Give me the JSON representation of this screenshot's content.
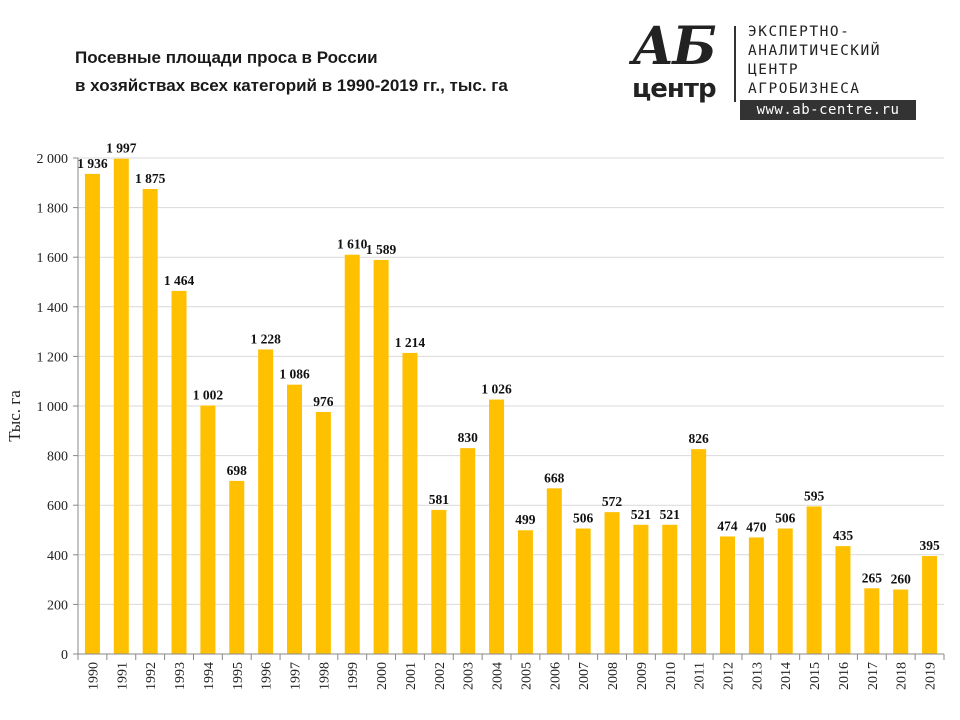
{
  "title": {
    "line1": "Посевные площади проса в России",
    "line2": "в хозяйствах всех категорий в 1990-2019 гг., тыс. га"
  },
  "logo": {
    "mark_top": "АБ",
    "mark_bottom": "центр",
    "line1": "ЭКСПЕРТНО-",
    "line2": "АНАЛИТИЧЕСКИЙ",
    "line3": "ЦЕНТР",
    "line4": "АГРОБИЗНЕСА",
    "url": "www.ab-centre.ru"
  },
  "chart_data": {
    "type": "bar",
    "title": "Посевные площади проса в России в хозяйствах всех категорий в 1990-2019 гг., тыс. га",
    "xlabel": "",
    "ylabel": "Тыс. га",
    "ylim": [
      0,
      2000
    ],
    "yticks": [
      0,
      200,
      400,
      600,
      800,
      1000,
      1200,
      1400,
      1600,
      1800,
      2000
    ],
    "ytick_labels": [
      "0",
      "200",
      "400",
      "600",
      "800",
      "1 000",
      "1 200",
      "1 400",
      "1 600",
      "1 800",
      "2 000"
    ],
    "grid": true,
    "bar_color": "#FFC000",
    "categories": [
      "1990",
      "1991",
      "1992",
      "1993",
      "1994",
      "1995",
      "1996",
      "1997",
      "1998",
      "1999",
      "2000",
      "2001",
      "2002",
      "2003",
      "2004",
      "2005",
      "2006",
      "2007",
      "2008",
      "2009",
      "2010",
      "2011",
      "2012",
      "2013",
      "2014",
      "2015",
      "2016",
      "2017",
      "2018",
      "2019"
    ],
    "values": [
      1936,
      1997,
      1875,
      1464,
      1002,
      698,
      1228,
      1086,
      976,
      1610,
      1589,
      1214,
      581,
      830,
      1026,
      499,
      668,
      506,
      572,
      521,
      521,
      826,
      474,
      470,
      506,
      595,
      435,
      265,
      260,
      395
    ],
    "data_labels": [
      "1 936",
      "1 997",
      "1 875",
      "1 464",
      "1 002",
      "698",
      "1 228",
      "1 086",
      "976",
      "1 610",
      "1 589",
      "1 214",
      "581",
      "830",
      "1 026",
      "499",
      "668",
      "506",
      "572",
      "521",
      "521",
      "826",
      "474",
      "470",
      "506",
      "595",
      "435",
      "265",
      "260",
      "395"
    ]
  }
}
